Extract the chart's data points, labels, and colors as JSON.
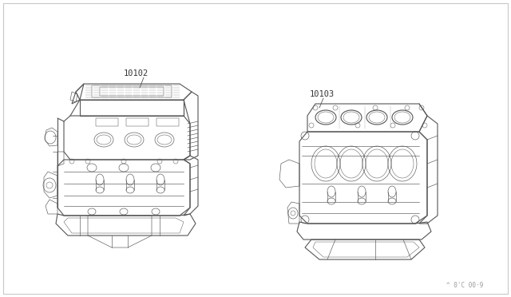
{
  "background_color": "#ffffff",
  "border_color": "#c8c8c8",
  "line_color": "#555555",
  "label_color": "#333333",
  "label1": "10102",
  "label2": "10103",
  "watermark": "^ 0'C 00·9",
  "figsize": [
    6.4,
    3.72
  ],
  "dpi": 100
}
